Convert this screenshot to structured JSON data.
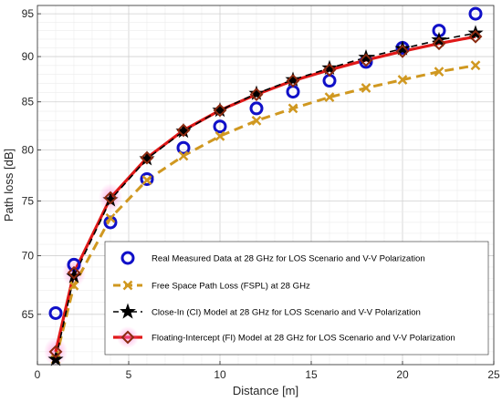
{
  "chart_data": {
    "type": "line",
    "title": "",
    "xlabel": "Distance [m]",
    "ylabel": "Path loss [dB]",
    "xlim": [
      0,
      25
    ],
    "ylim": [
      61,
      96
    ],
    "x_ticks": [
      0,
      5,
      10,
      15,
      20,
      25
    ],
    "y_ticks": [
      65,
      70,
      75,
      80,
      85,
      90,
      95
    ],
    "grid": true,
    "y_scale": "log",
    "legend_position": "bottom-right",
    "series": [
      {
        "name": "Real Measured Data at 28 GHz for LOS Scenario and V-V Polarization",
        "style": "markers",
        "marker": "circle",
        "color": "#1010c8",
        "x": [
          1,
          2,
          4,
          6,
          8,
          10,
          12,
          14,
          16,
          18,
          20,
          22,
          24
        ],
        "y": [
          65.1,
          69.2,
          73.0,
          77.1,
          80.2,
          82.4,
          84.3,
          86.1,
          87.3,
          89.4,
          91.0,
          93.0,
          95.0
        ]
      },
      {
        "name": "Free Space Path Loss (FSPL) at 28 GHz",
        "style": "dashed-line-markers",
        "marker": "x",
        "color": "#d09820",
        "x": [
          1,
          2,
          4,
          6,
          8,
          10,
          12,
          14,
          16,
          18,
          20,
          22,
          24
        ],
        "y": [
          61.4,
          67.4,
          73.4,
          77.0,
          79.4,
          81.4,
          83.0,
          84.3,
          85.5,
          86.5,
          87.4,
          88.3,
          89.0
        ]
      },
      {
        "name": "Close-In (CI) Model at 28 GHz for LOS Scenario and V-V Polarization",
        "style": "dashed-line-markers",
        "marker": "star",
        "color": "#000000",
        "x": [
          1,
          2,
          4,
          6,
          8,
          10,
          12,
          14,
          16,
          18,
          20,
          22,
          24
        ],
        "y": [
          61.4,
          68.2,
          75.1,
          79.1,
          81.9,
          84.1,
          85.9,
          87.4,
          88.7,
          89.9,
          90.9,
          91.9,
          92.7
        ]
      },
      {
        "name": "Floating-Intercept (FI) Model at 28 GHz for LOS Scenario and V-V Polarization",
        "style": "line-markers",
        "marker": "diamond",
        "color": "#e01818",
        "x": [
          1,
          2,
          4,
          6,
          8,
          10,
          12,
          14,
          16,
          18,
          20,
          22,
          24
        ],
        "y": [
          62.0,
          68.5,
          75.3,
          79.2,
          82.0,
          84.1,
          85.8,
          87.3,
          88.5,
          89.6,
          90.6,
          91.5,
          92.3
        ]
      }
    ]
  }
}
